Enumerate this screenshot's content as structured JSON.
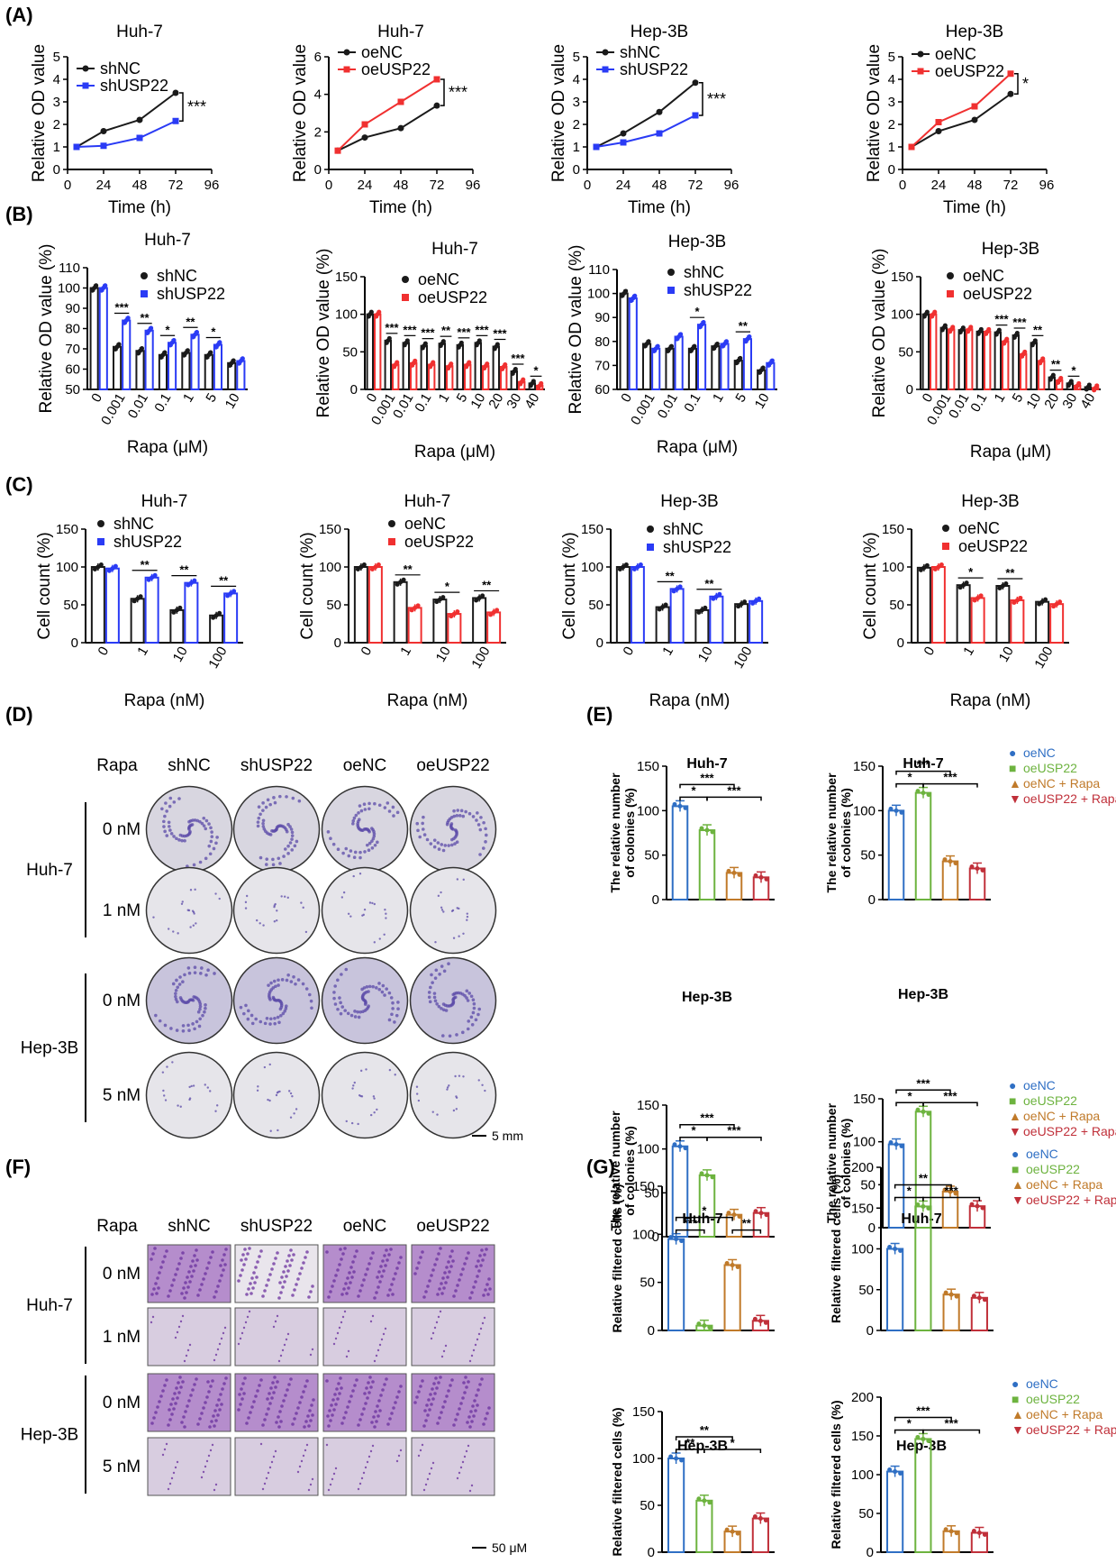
{
  "panel_labels": [
    "(A)",
    "(B)",
    "(C)",
    "(D)",
    "(E)",
    "(F)",
    "(G)"
  ],
  "colors": {
    "black": "#1a1a1a",
    "blue": "#2a3bf5",
    "red": "#f03030",
    "e_blue": "#2f6fc4",
    "e_green": "#6db33f",
    "e_orange": "#c07a2a",
    "e_red": "#c0303a"
  },
  "chart_data": [
    {
      "id": "A1",
      "panel": "A",
      "type": "line",
      "title": "Huh-7",
      "xlabel": "Time (h)",
      "ylabel": "Relative OD value",
      "x": [
        6,
        24,
        48,
        72
      ],
      "xticks": [
        0,
        24,
        48,
        72,
        96
      ],
      "yticks": [
        0,
        1,
        2,
        3,
        4,
        5
      ],
      "xlim": [
        0,
        96
      ],
      "ylim": [
        0,
        5
      ],
      "series": [
        {
          "name": "shNC",
          "color": "black",
          "values": [
            1.0,
            1.7,
            2.2,
            3.4
          ]
        },
        {
          "name": "shUSP22",
          "color": "blue",
          "values": [
            1.0,
            1.05,
            1.4,
            2.15
          ]
        }
      ],
      "significance": "***"
    },
    {
      "id": "A2",
      "panel": "A",
      "type": "line",
      "title": "Huh-7",
      "xlabel": "Time (h)",
      "ylabel": "Relative OD value",
      "x": [
        6,
        24,
        48,
        72
      ],
      "xticks": [
        0,
        24,
        48,
        72,
        96
      ],
      "yticks": [
        0,
        2,
        4,
        6
      ],
      "xlim": [
        0,
        96
      ],
      "ylim": [
        0,
        6
      ],
      "series": [
        {
          "name": "oeNC",
          "color": "black",
          "values": [
            1.0,
            1.7,
            2.2,
            3.4
          ]
        },
        {
          "name": "oeUSP22",
          "color": "red",
          "values": [
            1.0,
            2.4,
            3.6,
            4.8
          ]
        }
      ],
      "significance": "***"
    },
    {
      "id": "A3",
      "panel": "A",
      "type": "line",
      "title": "Hep-3B",
      "xlabel": "Time (h)",
      "ylabel": "Relative OD value",
      "x": [
        6,
        24,
        48,
        72
      ],
      "xticks": [
        0,
        24,
        48,
        72,
        96
      ],
      "yticks": [
        0,
        1,
        2,
        3,
        4,
        5
      ],
      "xlim": [
        0,
        96
      ],
      "ylim": [
        0,
        5
      ],
      "series": [
        {
          "name": "shNC",
          "color": "black",
          "values": [
            1.0,
            1.6,
            2.55,
            3.85
          ]
        },
        {
          "name": "shUSP22",
          "color": "blue",
          "values": [
            1.0,
            1.2,
            1.6,
            2.4
          ]
        }
      ],
      "significance": "***"
    },
    {
      "id": "A4",
      "panel": "A",
      "type": "line",
      "title": "Hep-3B",
      "xlabel": "Time (h)",
      "ylabel": "Relative OD value",
      "x": [
        6,
        24,
        48,
        72
      ],
      "xticks": [
        0,
        24,
        48,
        72,
        96
      ],
      "yticks": [
        0,
        1,
        2,
        3,
        4,
        5
      ],
      "xlim": [
        0,
        96
      ],
      "ylim": [
        0,
        5
      ],
      "series": [
        {
          "name": "oeNC",
          "color": "black",
          "values": [
            1.0,
            1.7,
            2.2,
            3.35
          ]
        },
        {
          "name": "oeUSP22",
          "color": "red",
          "values": [
            1.0,
            2.1,
            2.8,
            4.25
          ]
        }
      ],
      "significance": "*"
    },
    {
      "id": "B1",
      "panel": "B",
      "type": "bar",
      "title": "Huh-7",
      "xlabel": "Rapa (μM)",
      "ylabel": "Relative OD value (%)",
      "categories": [
        "0",
        "0.001",
        "0.01",
        "0.1",
        "1",
        "5",
        "10"
      ],
      "yticks": [
        50,
        60,
        70,
        80,
        90,
        100,
        110
      ],
      "ylim": [
        50,
        110
      ],
      "series": [
        {
          "name": "shNC",
          "color": "black",
          "values": [
            100,
            71,
            69,
            67,
            68,
            67,
            63
          ]
        },
        {
          "name": "shUSP22",
          "color": "blue",
          "values": [
            100,
            84,
            79,
            73,
            77,
            72,
            64
          ]
        }
      ],
      "significance": [
        "",
        "***",
        "**",
        "*",
        "**",
        "*",
        ""
      ]
    },
    {
      "id": "B2",
      "panel": "B",
      "type": "bar",
      "title": "Huh-7",
      "xlabel": "Rapa (μM)",
      "ylabel": "Relative OD value (%)",
      "categories": [
        "0",
        "0.001",
        "0.01",
        "0.1",
        "1",
        "5",
        "10",
        "20",
        "30",
        "40"
      ],
      "yticks": [
        0,
        50,
        100,
        150
      ],
      "ylim": [
        0,
        150
      ],
      "series": [
        {
          "name": "oeNC",
          "color": "black",
          "values": [
            100,
            65,
            62,
            58,
            61,
            59,
            62,
            57,
            24,
            8
          ]
        },
        {
          "name": "oeUSP22",
          "color": "red",
          "values": [
            100,
            33,
            35,
            33,
            31,
            33,
            31,
            30,
            10,
            5
          ]
        }
      ],
      "significance": [
        "",
        "***",
        "***",
        "***",
        "**",
        "***",
        "***",
        "***",
        "***",
        "*"
      ]
    },
    {
      "id": "B3",
      "panel": "B",
      "type": "bar",
      "title": "Hep-3B",
      "xlabel": "Rapa (μM)",
      "ylabel": "Relative OD value (%)",
      "categories": [
        "0",
        "0.001",
        "0.01",
        "0.1",
        "1",
        "5",
        "10"
      ],
      "yticks": [
        60,
        70,
        80,
        90,
        100,
        110
      ],
      "ylim": [
        60,
        110
      ],
      "series": [
        {
          "name": "shNC",
          "color": "black",
          "values": [
            100,
            79,
            77,
            77,
            78,
            72,
            68
          ]
        },
        {
          "name": "shUSP22",
          "color": "blue",
          "values": [
            98,
            77,
            82,
            87,
            79,
            81,
            71
          ]
        }
      ],
      "significance": [
        "",
        "",
        "",
        "*",
        "",
        "**",
        ""
      ]
    },
    {
      "id": "B4",
      "panel": "B",
      "type": "bar",
      "title": "Hep-3B",
      "xlabel": "Rapa (μM)",
      "ylabel": "Relative OD value (%)",
      "categories": [
        "0",
        "0.001",
        "0.01",
        "0.1",
        "1",
        "5",
        "10",
        "20",
        "30",
        "40"
      ],
      "yticks": [
        0,
        50,
        100,
        150
      ],
      "ylim": [
        0,
        150
      ],
      "series": [
        {
          "name": "oeNC",
          "color": "black",
          "values": [
            100,
            82,
            79,
            77,
            76,
            72,
            62,
            16,
            8,
            3
          ]
        },
        {
          "name": "oeUSP22",
          "color": "red",
          "values": [
            100,
            80,
            80,
            77,
            64,
            47,
            38,
            12,
            5,
            2
          ]
        }
      ],
      "significance": [
        "",
        "",
        "",
        "",
        "***",
        "***",
        "**",
        "**",
        "*",
        ""
      ]
    },
    {
      "id": "C1",
      "panel": "C",
      "type": "bar",
      "title": "Huh-7",
      "xlabel": "Rapa (nM)",
      "ylabel": "Cell count (%)",
      "categories": [
        "0",
        "1",
        "10",
        "100"
      ],
      "yticks": [
        0,
        50,
        100,
        150
      ],
      "ylim": [
        0,
        150
      ],
      "series": [
        {
          "name": "shNC",
          "color": "black",
          "values": [
            100,
            58,
            43,
            36
          ]
        },
        {
          "name": "shUSP22",
          "color": "blue",
          "values": [
            98,
            86,
            79,
            65
          ]
        }
      ],
      "significance": [
        "",
        "**",
        "**",
        "**"
      ]
    },
    {
      "id": "C2",
      "panel": "C",
      "type": "bar",
      "title": "Huh-7",
      "xlabel": "Rapa (nM)",
      "ylabel": "Cell count (%)",
      "categories": [
        "0",
        "1",
        "10",
        "100"
      ],
      "yticks": [
        0,
        50,
        100,
        150
      ],
      "ylim": [
        0,
        150
      ],
      "series": [
        {
          "name": "oeNC",
          "color": "black",
          "values": [
            100,
            80,
            57,
            59
          ]
        },
        {
          "name": "oeUSP22",
          "color": "red",
          "values": [
            100,
            46,
            38,
            40
          ]
        }
      ],
      "significance": [
        "",
        "**",
        "*",
        "**"
      ]
    },
    {
      "id": "C3",
      "panel": "C",
      "type": "bar",
      "title": "Hep-3B",
      "xlabel": "Rapa (nM)",
      "ylabel": "Cell count (%)",
      "categories": [
        "0",
        "1",
        "10",
        "100"
      ],
      "yticks": [
        0,
        50,
        100,
        150
      ],
      "ylim": [
        0,
        150
      ],
      "series": [
        {
          "name": "shNC",
          "color": "black",
          "values": [
            100,
            47,
            43,
            51
          ]
        },
        {
          "name": "shUSP22",
          "color": "blue",
          "values": [
            100,
            71,
            61,
            55
          ]
        }
      ],
      "significance": [
        "",
        "**",
        "**",
        ""
      ]
    },
    {
      "id": "C4",
      "panel": "C",
      "type": "bar",
      "title": "Hep-3B",
      "xlabel": "Rapa (nM)",
      "ylabel": "Cell count (%)",
      "categories": [
        "0",
        "1",
        "10",
        "100"
      ],
      "yticks": [
        0,
        50,
        100,
        150
      ],
      "ylim": [
        0,
        150
      ],
      "series": [
        {
          "name": "oeNC",
          "color": "black",
          "values": [
            99,
            76,
            75,
            54
          ]
        },
        {
          "name": "oeUSP22",
          "color": "red",
          "values": [
            100,
            59,
            56,
            51
          ]
        }
      ],
      "significance": [
        "",
        "*",
        "**",
        ""
      ]
    },
    {
      "id": "E1",
      "panel": "E",
      "type": "bar",
      "title": "Huh-7",
      "ylabel": "The relative number of colonies (%)",
      "categories": [
        "oeNC",
        "oeUSP22",
        "oeNC + Rapa",
        "oeUSP22 + Rapa"
      ],
      "values": [
        105,
        78,
        30,
        25
      ],
      "yticks": [
        0,
        50,
        100,
        150
      ],
      "ylim": [
        0,
        150
      ],
      "brackets": [
        {
          "from": 0,
          "to": 1,
          "sig": "*"
        },
        {
          "from": 0,
          "to": 2,
          "sig": "***"
        },
        {
          "from": 1,
          "to": 3,
          "sig": "***"
        }
      ]
    },
    {
      "id": "E2",
      "panel": "E",
      "type": "bar",
      "title": "Huh-7",
      "ylabel": "The relative number of colonies (%)",
      "categories": [
        "oeNC",
        "oeUSP22",
        "oeNC + Rapa",
        "oeUSP22 + Rapa"
      ],
      "values": [
        100,
        120,
        43,
        35
      ],
      "yticks": [
        0,
        50,
        100,
        150
      ],
      "ylim": [
        0,
        150
      ],
      "brackets": [
        {
          "from": 0,
          "to": 1,
          "sig": "*"
        },
        {
          "from": 0,
          "to": 2,
          "sig": "***"
        },
        {
          "from": 1,
          "to": 3,
          "sig": "***"
        }
      ]
    },
    {
      "id": "E3",
      "panel": "E",
      "type": "bar",
      "title": "Hep-3B",
      "ylabel": "The relative number of colonies (%)",
      "categories": [
        "oeNC",
        "oeUSP22",
        "oeNC + Rapa",
        "oeUSP22 + Rapa"
      ],
      "values": [
        103,
        70,
        25,
        27
      ],
      "yticks": [
        0,
        50,
        100,
        150
      ],
      "ylim": [
        0,
        150
      ],
      "brackets": [
        {
          "from": 0,
          "to": 1,
          "sig": "*"
        },
        {
          "from": 0,
          "to": 2,
          "sig": "***"
        },
        {
          "from": 1,
          "to": 3,
          "sig": "***"
        }
      ]
    },
    {
      "id": "E4",
      "panel": "E",
      "type": "bar",
      "title": "Hep-3B",
      "ylabel": "The relative number of colonies (%)",
      "categories": [
        "oeNC",
        "oeUSP22",
        "oeNC + Rapa",
        "oeUSP22 + Rapa"
      ],
      "values": [
        97,
        135,
        42,
        25
      ],
      "yticks": [
        0,
        50,
        100,
        150
      ],
      "ylim": [
        0,
        150
      ],
      "brackets": [
        {
          "from": 0,
          "to": 1,
          "sig": "*"
        },
        {
          "from": 0,
          "to": 2,
          "sig": "***"
        },
        {
          "from": 1,
          "to": 3,
          "sig": "***"
        }
      ]
    },
    {
      "id": "G1",
      "panel": "G",
      "type": "bar",
      "title": "Huh-7",
      "ylabel": "Relative filtered cells (%)",
      "categories": [
        "oeNC",
        "oeUSP22",
        "oeNC + Rapa",
        "oeUSP22 + Rapa"
      ],
      "values": [
        95,
        5,
        68,
        10
      ],
      "yticks": [
        0,
        50,
        100,
        150
      ],
      "ylim": [
        0,
        150
      ],
      "brackets": [
        {
          "from": 0,
          "to": 1,
          "sig": "***"
        },
        {
          "from": 0,
          "to": 2,
          "sig": "*"
        },
        {
          "from": 2,
          "to": 3,
          "sig": "**"
        }
      ]
    },
    {
      "id": "G2",
      "panel": "G",
      "type": "bar",
      "title": "Huh-7",
      "ylabel": "Relative filtered cells (%)",
      "categories": [
        "oeNC",
        "oeUSP22",
        "oeNC + Rapa",
        "oeUSP22 + Rapa"
      ],
      "values": [
        100,
        152,
        44,
        40
      ],
      "yticks": [
        0,
        50,
        100,
        150,
        200
      ],
      "ylim": [
        0,
        200
      ],
      "brackets": [
        {
          "from": 0,
          "to": 1,
          "sig": "*"
        },
        {
          "from": 0,
          "to": 2,
          "sig": "**"
        },
        {
          "from": 1,
          "to": 3,
          "sig": "***"
        }
      ]
    },
    {
      "id": "G3",
      "panel": "G",
      "type": "bar",
      "title": "Hep-3B",
      "ylabel": "Relative filtered cells (%)",
      "categories": [
        "oeNC",
        "oeUSP22",
        "oeNC + Rapa",
        "oeUSP22 + Rapa"
      ],
      "values": [
        100,
        55,
        22,
        36
      ],
      "yticks": [
        0,
        50,
        100,
        150
      ],
      "ylim": [
        0,
        150
      ],
      "brackets": [
        {
          "from": 0,
          "to": 1,
          "sig": "**"
        },
        {
          "from": 0,
          "to": 2,
          "sig": "**"
        },
        {
          "from": 1,
          "to": 3,
          "sig": "*"
        }
      ]
    },
    {
      "id": "G4",
      "panel": "G",
      "type": "bar",
      "title": "Hep-3B",
      "ylabel": "Relative filtered cells (%)",
      "categories": [
        "oeNC",
        "oeUSP22",
        "oeNC + Rapa",
        "oeUSP22 + Rapa"
      ],
      "values": [
        104,
        146,
        27,
        25
      ],
      "yticks": [
        0,
        50,
        100,
        150,
        200
      ],
      "ylim": [
        0,
        200
      ],
      "brackets": [
        {
          "from": 0,
          "to": 1,
          "sig": "*"
        },
        {
          "from": 0,
          "to": 2,
          "sig": "***"
        },
        {
          "from": 1,
          "to": 3,
          "sig": "***"
        }
      ]
    }
  ],
  "legend_four": [
    "oeNC",
    "oeUSP22",
    "oeNC + Rapa",
    "oeUSP22 + Rapa"
  ],
  "panel_D": {
    "columns": [
      "Rapa",
      "shNC",
      "shUSP22",
      "oeNC",
      "oeUSP22"
    ],
    "cell_lines": [
      "Huh-7",
      "Hep-3B"
    ],
    "doses": [
      [
        "0 nM",
        "1 nM"
      ],
      [
        "0 nM",
        "5 nM"
      ]
    ],
    "scale_bar": "5 mm"
  },
  "panel_F": {
    "columns": [
      "Rapa",
      "shNC",
      "shUSP22",
      "oeNC",
      "oeUSP22"
    ],
    "cell_lines": [
      "Huh-7",
      "Hep-3B"
    ],
    "doses": [
      [
        "0 nM",
        "1 nM"
      ],
      [
        "0 nM",
        "5 nM"
      ]
    ],
    "scale_bar": "50 μM"
  }
}
